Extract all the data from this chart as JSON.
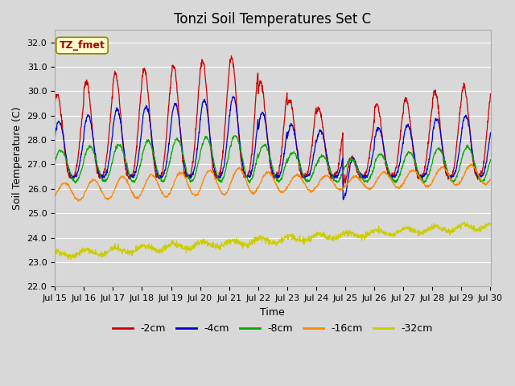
{
  "title": "Tonzi Soil Temperatures Set C",
  "xlabel": "Time",
  "ylabel": "Soil Temperature (C)",
  "ylim": [
    22.0,
    32.5
  ],
  "yticks": [
    22.0,
    23.0,
    24.0,
    25.0,
    26.0,
    27.0,
    28.0,
    29.0,
    30.0,
    31.0,
    32.0
  ],
  "xtick_labels": [
    "Jul 15",
    "Jul 16",
    "Jul 17",
    "Jul 18",
    "Jul 19",
    "Jul 20",
    "Jul 21",
    "Jul 22",
    "Jul 23",
    "Jul 24",
    "Jul 25",
    "Jul 26",
    "Jul 27",
    "Jul 28",
    "Jul 29",
    "Jul 30"
  ],
  "series_colors": [
    "#cc0000",
    "#0000cc",
    "#00aa00",
    "#ff8800",
    "#cccc00"
  ],
  "series_labels": [
    "-2cm",
    "-4cm",
    "-8cm",
    "-16cm",
    "-32cm"
  ],
  "fig_bg_color": "#d8d8d8",
  "plot_bg_color": "#d8d8d8",
  "grid_color": "#ffffff",
  "annotation_text": "TZ_fmet",
  "annotation_color": "#aa0000",
  "annotation_bg": "#ffffcc",
  "annotation_edge": "#888800",
  "title_fontsize": 12,
  "axis_label_fontsize": 9,
  "tick_fontsize": 8,
  "legend_fontsize": 9
}
